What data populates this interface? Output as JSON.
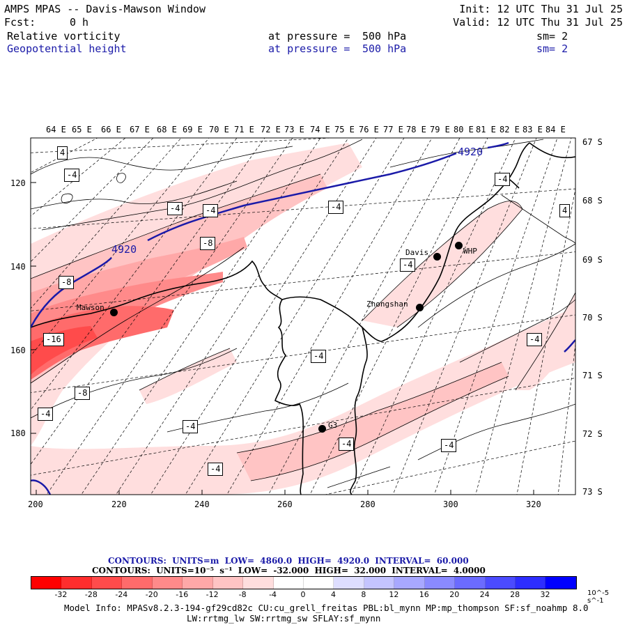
{
  "header": {
    "title": "AMPS MPAS -- Davis-Mawson Window",
    "fcst_label": "Fcst:",
    "fcst_value": "0 h",
    "init": "Init: 12 UTC Thu 31 Jul 25",
    "valid": "Valid: 12 UTC Thu 31 Jul 25",
    "field1": {
      "name": "Relative vorticity",
      "pressure_label": "at pressure =",
      "pressure": "500 hPa",
      "sm": "sm= 2"
    },
    "field2": {
      "name": "Geopotential height",
      "pressure_label": "at pressure =",
      "pressure": "500 hPa",
      "sm": "sm= 2"
    }
  },
  "axes": {
    "top_lon_labels": [
      "64 E",
      "65 E",
      "66 E",
      "67 E",
      "68 E",
      "69 E",
      "70 E",
      "71 E",
      "72 E",
      "73 E",
      "74 E",
      "75 E",
      "76 E",
      "77 E",
      "78 E",
      "79 E",
      "80 E",
      "81 E",
      "82 E",
      "83 E",
      "84 E"
    ],
    "right_lat_labels": [
      "67 S",
      "68 S",
      "69 S",
      "70 S",
      "71 S",
      "72 S",
      "73 S"
    ],
    "left_y_labels": [
      "120",
      "140",
      "160",
      "180"
    ],
    "bottom_x_labels": [
      "200",
      "220",
      "240",
      "260",
      "280",
      "300",
      "320"
    ]
  },
  "stations": [
    {
      "name": "Mawson"
    },
    {
      "name": "Davis"
    },
    {
      "name": "WHP"
    },
    {
      "name": "Zhongshan"
    },
    {
      "name": "G3"
    }
  ],
  "contour_labels": {
    "vorticity": [
      "4",
      "-4",
      "-4",
      "-4",
      "-4",
      "-8",
      "-4",
      "-8",
      "-4",
      "4",
      "-16",
      "-8",
      "-4",
      "-4",
      "-4",
      "-4",
      "-4",
      "-4",
      "-4"
    ],
    "height": [
      "4920",
      "4920"
    ]
  },
  "colorbar": {
    "ticks": [
      "-32",
      "-28",
      "-24",
      "-20",
      "-16",
      "-12",
      "-8",
      "-4",
      "0",
      "4",
      "8",
      "12",
      "16",
      "20",
      "24",
      "28",
      "32"
    ],
    "units": "10^-5 s^-1",
    "colors": [
      "#ff0000",
      "#ff2d2d",
      "#ff4b4b",
      "#ff6b6b",
      "#ff8a8a",
      "#ffa8a8",
      "#ffc4c4",
      "#ffdede",
      "#ffffff",
      "#ffffff",
      "#dedeff",
      "#c4c4ff",
      "#a8a8ff",
      "#8a8aff",
      "#6b6bff",
      "#4b4bff",
      "#2d2dff",
      "#0000ff"
    ]
  },
  "contours_info": {
    "line1": "CONTOURS: UNITS=m LOW= 4860.0 HIGH= 4920.0 INTERVAL= 60.000",
    "line2": "CONTOURS: UNITS=10⁻⁵ s⁻¹ LOW= -32.000 HIGH= 32.000 INTERVAL= 4.0000"
  },
  "model_info": {
    "line1": "Model Info: MPASv8.2.3-194-gf29cd82c CU:cu_grell_freitas PBL:bl_mynn MP:mp_thompson SF:sf_noahmp 8.0",
    "line2": "LW:rrtmg_lw SW:rrtmg_sw SFLAY:sf_mynn"
  }
}
